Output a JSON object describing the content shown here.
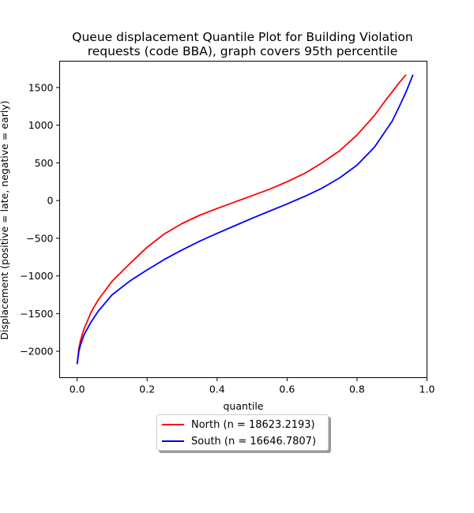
{
  "chart_data": {
    "type": "line",
    "title_lines": [
      "Queue displacement Quantile Plot for Building Violation",
      "requests (code BBA), graph covers 95th percentile"
    ],
    "xlabel": "quantile",
    "ylabel": "Displacement (positive = late, negative = early)",
    "xlim": [
      -0.05,
      1.0
    ],
    "ylim": [
      -2350,
      1850
    ],
    "xticks": [
      0.0,
      0.2,
      0.4,
      0.6,
      0.8,
      1.0
    ],
    "xtick_labels": [
      "0.0",
      "0.2",
      "0.4",
      "0.6",
      "0.8",
      "1.0"
    ],
    "yticks": [
      -2000,
      -1500,
      -1000,
      -500,
      0,
      500,
      1000,
      1500
    ],
    "ytick_labels": [
      "−2000",
      "−1500",
      "−1000",
      "−500",
      "0",
      "500",
      "1000",
      "1500"
    ],
    "grid": false,
    "legend_position": "below plot, centered",
    "series": [
      {
        "name": "North (n = 18623.2193)",
        "color": "#ff0000",
        "x": [
          0.0,
          0.005,
          0.01,
          0.02,
          0.04,
          0.06,
          0.1,
          0.15,
          0.2,
          0.25,
          0.3,
          0.35,
          0.4,
          0.45,
          0.5,
          0.55,
          0.6,
          0.65,
          0.7,
          0.75,
          0.8,
          0.85,
          0.88,
          0.9,
          0.92,
          0.94
        ],
        "y": [
          -2170,
          -1960,
          -1850,
          -1700,
          -1480,
          -1320,
          -1070,
          -840,
          -620,
          -440,
          -305,
          -195,
          -105,
          -20,
          65,
          150,
          250,
          360,
          500,
          660,
          870,
          1130,
          1320,
          1440,
          1560,
          1670
        ]
      },
      {
        "name": "South (n = 16646.7807)",
        "color": "#0000ff",
        "x": [
          0.0,
          0.005,
          0.01,
          0.02,
          0.04,
          0.06,
          0.1,
          0.15,
          0.2,
          0.25,
          0.3,
          0.35,
          0.4,
          0.45,
          0.5,
          0.55,
          0.6,
          0.65,
          0.7,
          0.75,
          0.8,
          0.85,
          0.9,
          0.92,
          0.94,
          0.96
        ],
        "y": [
          -2170,
          -2000,
          -1910,
          -1780,
          -1610,
          -1470,
          -1250,
          -1070,
          -920,
          -780,
          -655,
          -540,
          -435,
          -335,
          -235,
          -140,
          -45,
          55,
          165,
          300,
          470,
          710,
          1050,
          1240,
          1440,
          1670
        ]
      }
    ]
  }
}
